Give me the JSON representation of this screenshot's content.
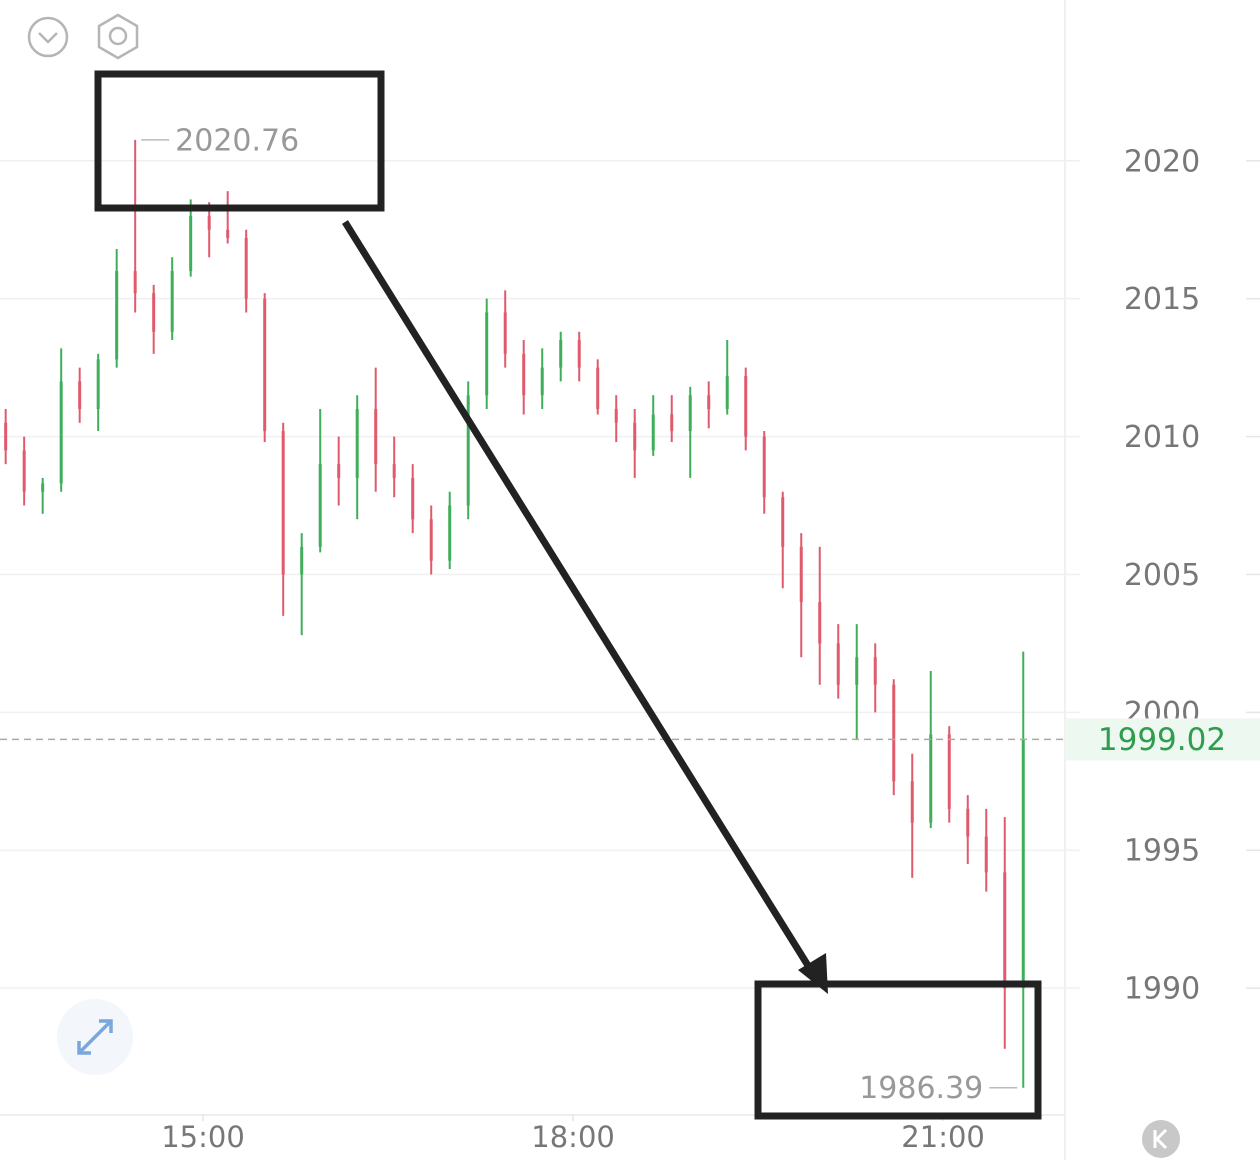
{
  "chart_data": {
    "type": "candlestick",
    "x": [
      13.4,
      13.55,
      13.7,
      13.85,
      14.0,
      14.15,
      14.3,
      14.45,
      14.6,
      14.75,
      14.9,
      15.05,
      15.2,
      15.35,
      15.5,
      15.65,
      15.8,
      15.95,
      16.1,
      16.25,
      16.4,
      16.55,
      16.7,
      16.85,
      17.0,
      17.15,
      17.3,
      17.45,
      17.6,
      17.75,
      17.9,
      18.05,
      18.2,
      18.35,
      18.5,
      18.65,
      18.8,
      18.95,
      19.1,
      19.25,
      19.4,
      19.55,
      19.7,
      19.85,
      20.0,
      20.15,
      20.3,
      20.45,
      20.6,
      20.75,
      20.9,
      21.05,
      21.2,
      21.35,
      21.5,
      21.65
    ],
    "open": [
      2010.5,
      2009.5,
      2008,
      2008.3,
      2012,
      2011,
      2012.8,
      2016,
      2015.2,
      2013.8,
      2016,
      2018,
      2017.5,
      2017.2,
      2015,
      2010.2,
      2005,
      2006,
      2009,
      2008.5,
      2011,
      2009,
      2008.5,
      2007,
      2005.5,
      2007.5,
      2011.5,
      2014.5,
      2013,
      2011.5,
      2012.5,
      2013.5,
      2012.5,
      2011,
      2010.5,
      2009.5,
      2010.8,
      2010.2,
      2011.5,
      2011,
      2012.2,
      2010,
      2007.8,
      2006,
      2004,
      2002.5,
      2001,
      2002,
      2001,
      1997.5,
      1996,
      1999.2,
      1996.5,
      1995.5,
      1994.2,
      1990
    ],
    "high": [
      2011,
      2010,
      2008.5,
      2013.2,
      2012.5,
      2013,
      2016.8,
      2020.76,
      2015.5,
      2016.5,
      2018.6,
      2018.5,
      2018.9,
      2017.5,
      2015.2,
      2010.5,
      2006.5,
      2011,
      2010,
      2011.5,
      2012.5,
      2010,
      2009,
      2007.5,
      2008,
      2012,
      2015,
      2015.3,
      2013.5,
      2013.2,
      2013.8,
      2013.8,
      2012.8,
      2011.5,
      2011,
      2011.5,
      2011.5,
      2011.8,
      2012,
      2013.5,
      2012.5,
      2010.2,
      2008,
      2006.5,
      2006,
      2003.2,
      2003.2,
      2002.5,
      2001.2,
      1998.5,
      2001.5,
      1999.5,
      1997,
      1996.5,
      1996.2,
      2002.2
    ],
    "low": [
      2009,
      2007.5,
      2007.2,
      2008,
      2010.5,
      2010.2,
      2012.5,
      2014.5,
      2013,
      2013.5,
      2015.8,
      2016.5,
      2017,
      2014.5,
      2009.8,
      2003.5,
      2002.8,
      2005.8,
      2007.5,
      2007,
      2008,
      2007.8,
      2006.5,
      2005,
      2005.2,
      2007,
      2011,
      2012.5,
      2010.8,
      2011,
      2012,
      2012,
      2010.8,
      2009.8,
      2008.5,
      2009.3,
      2009.8,
      2008.5,
      2010.3,
      2010.8,
      2009.5,
      2007.2,
      2004.5,
      2002,
      2001,
      2000.5,
      1999,
      2000,
      1997,
      1994,
      1995.8,
      1996,
      1994.5,
      1993.5,
      1987.8,
      1986.39
    ],
    "close": [
      2009.5,
      2008,
      2008.3,
      2012,
      2011,
      2012.8,
      2016,
      2015.2,
      2013.8,
      2016,
      2018,
      2017.5,
      2017.2,
      2015,
      2010.2,
      2005,
      2006,
      2009,
      2008.5,
      2011,
      2009,
      2008.5,
      2007,
      2005.5,
      2007.5,
      2011.5,
      2014.5,
      2013,
      2011.5,
      2012.5,
      2013.5,
      2012.5,
      2011,
      2010.5,
      2009.5,
      2010.8,
      2010.2,
      2011.5,
      2011,
      2012.2,
      2010,
      2007.8,
      2006,
      2004,
      2002.5,
      2001,
      2002,
      2001,
      1997.5,
      1996,
      1999.2,
      1996.5,
      1995.5,
      1994.2,
      1990,
      1999.02
    ],
    "up_color": "#3fae5a",
    "down_color": "#e05a6c",
    "xlim": [
      13.354,
      22.11
    ],
    "xticks": [
      {
        "value": 15,
        "label": "15:00"
      },
      {
        "value": 18,
        "label": "18:00"
      },
      {
        "value": 21,
        "label": "21:00"
      }
    ],
    "ylim": [
      1985.4,
      2025.83
    ],
    "yticks": [
      1990,
      1995,
      2000,
      2005,
      2010,
      2015,
      2020
    ],
    "grid": true,
    "annotations": {
      "high": 2020.76,
      "low": 1986.39,
      "last": 1999.02
    }
  }
}
